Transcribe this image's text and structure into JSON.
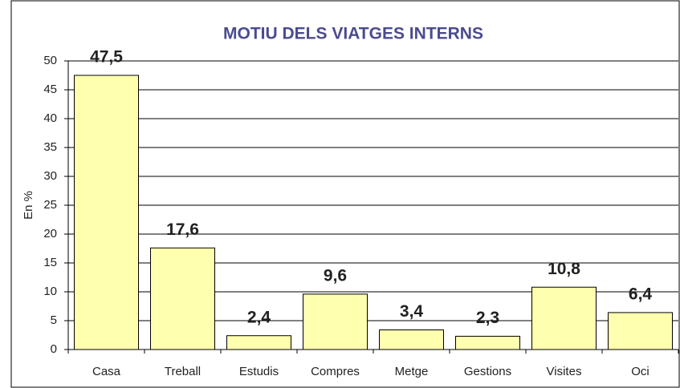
{
  "chart_data": {
    "type": "bar",
    "title": "MOTIU DELS VIATGES INTERNS",
    "ylabel": "En %",
    "categories": [
      "Casa",
      "Treball",
      "Estudis",
      "Compres",
      "Metge",
      "Gestions",
      "Visites",
      "Oci"
    ],
    "values": [
      47.5,
      17.6,
      2.4,
      9.6,
      3.4,
      2.3,
      10.8,
      6.4
    ],
    "value_labels": [
      "47,5",
      "17,6",
      "2,4",
      "9,6",
      "3,4",
      "2,3",
      "10,8",
      "6,4"
    ],
    "color": "#ffffb0",
    "ylim": [
      0,
      50
    ],
    "yticks": [
      0,
      5,
      10,
      15,
      20,
      25,
      30,
      35,
      40,
      45,
      50
    ],
    "grid": true
  }
}
